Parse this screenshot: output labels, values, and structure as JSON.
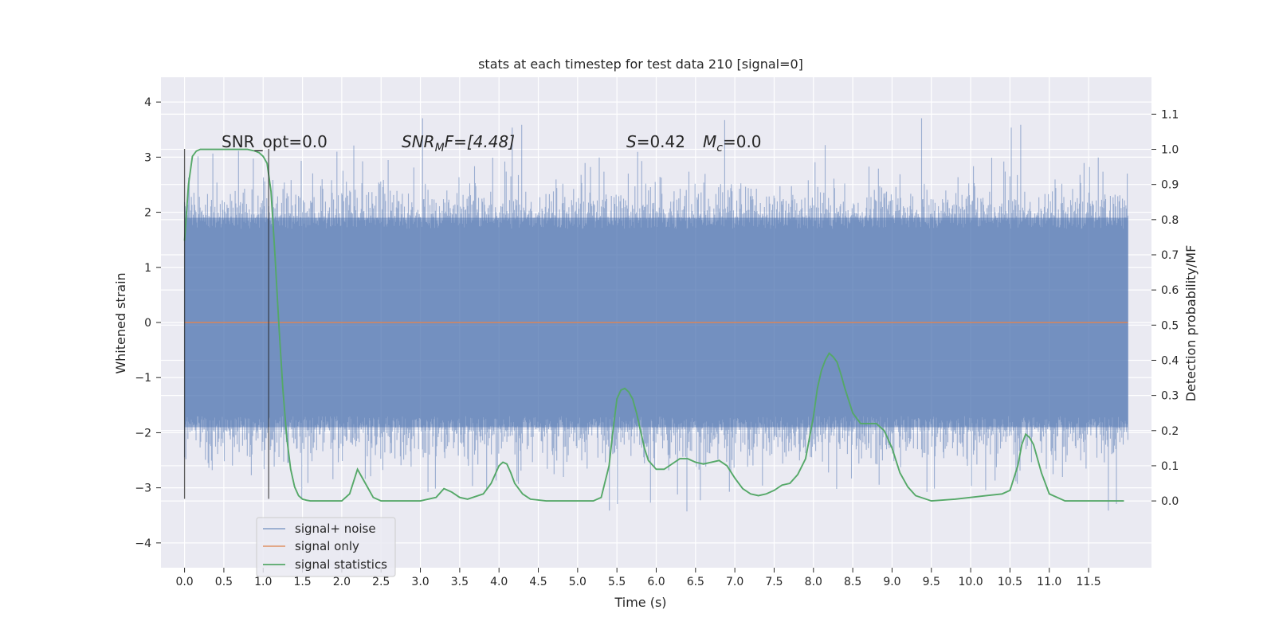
{
  "chart_data": {
    "type": "line",
    "title": "stats at each timestep for test data 210 [signal=0]",
    "xlabel": "Time (s)",
    "ylabel": "Whitened strain",
    "ylabel_right": "Detection probability/MF",
    "xlim": [
      -0.3,
      12.3
    ],
    "ylim": [
      -4.45,
      4.45
    ],
    "ylim_right": [
      -0.19,
      1.205
    ],
    "xticks": [
      "0.0",
      "0.5",
      "1.0",
      "1.5",
      "2.0",
      "2.5",
      "3.0",
      "3.5",
      "4.0",
      "4.5",
      "5.0",
      "5.5",
      "6.0",
      "6.5",
      "7.0",
      "7.5",
      "8.0",
      "8.5",
      "9.0",
      "9.5",
      "10.0",
      "10.5",
      "11.0",
      "11.5"
    ],
    "yticks": [
      "4",
      "3",
      "2",
      "1",
      "0",
      "−1",
      "−2",
      "−3",
      "−4"
    ],
    "yticks_right": [
      "1.1",
      "1.0",
      "0.9",
      "0.8",
      "0.7",
      "0.6",
      "0.5",
      "0.4",
      "0.3",
      "0.2",
      "0.1",
      "0.0"
    ],
    "grid": true,
    "legend_position": "lower-left",
    "colors": {
      "background": "#eaeaf2",
      "grid": "#ffffff",
      "noise": "#4c72b0",
      "signal": "#dd8452",
      "stats": "#55a868",
      "vlines": "#262626"
    },
    "annotations": {
      "snr_opt": "SNR_opt=0.0",
      "snr_mf_sym": "SNR",
      "snr_mf_sub": "M",
      "snr_mf_rest": "F=[4.48]",
      "s_sym": "S",
      "s_rest": "=0.42",
      "mc_sym": "M",
      "mc_sub": "c",
      "mc_rest": "=0.0"
    },
    "vertical_lines_x": [
      0.0,
      1.07
    ],
    "noise_envelope": {
      "x_range": [
        0.0,
        12.0
      ],
      "typical_range": [
        -1.9,
        1.9
      ],
      "max_abs": 4.1
    },
    "series": [
      {
        "name": "signal+ noise",
        "axis": "left",
        "note_values": "dense noise trace approx ±2.5, peaks to ~4"
      },
      {
        "name": "signal only",
        "axis": "left",
        "x": [
          0.0,
          12.0
        ],
        "y": [
          0.0,
          0.0
        ]
      },
      {
        "name": "signal statistics",
        "axis": "right",
        "x": [
          0.0,
          0.05,
          0.1,
          0.15,
          0.2,
          0.3,
          0.5,
          0.7,
          0.8,
          0.9,
          0.95,
          1.0,
          1.05,
          1.1,
          1.15,
          1.2,
          1.25,
          1.3,
          1.35,
          1.4,
          1.45,
          1.5,
          1.55,
          1.6,
          1.7,
          1.8,
          2.0,
          2.1,
          2.2,
          2.3,
          2.4,
          2.5,
          2.7,
          3.0,
          3.2,
          3.3,
          3.4,
          3.5,
          3.6,
          3.8,
          3.9,
          4.0,
          4.05,
          4.1,
          4.15,
          4.2,
          4.3,
          4.4,
          4.6,
          4.8,
          5.0,
          5.2,
          5.3,
          5.4,
          5.45,
          5.5,
          5.55,
          5.6,
          5.65,
          5.7,
          5.75,
          5.8,
          5.85,
          5.9,
          6.0,
          6.1,
          6.2,
          6.3,
          6.4,
          6.5,
          6.6,
          6.7,
          6.8,
          6.9,
          7.0,
          7.1,
          7.2,
          7.3,
          7.4,
          7.5,
          7.6,
          7.7,
          7.8,
          7.9,
          8.0,
          8.05,
          8.1,
          8.15,
          8.2,
          8.25,
          8.3,
          8.35,
          8.4,
          8.5,
          8.6,
          8.7,
          8.8,
          8.9,
          9.0,
          9.1,
          9.2,
          9.3,
          9.5,
          9.8,
          10.0,
          10.2,
          10.4,
          10.5,
          10.6,
          10.65,
          10.7,
          10.75,
          10.8,
          10.9,
          11.0,
          11.2,
          11.5,
          11.8,
          11.95
        ],
        "y": [
          0.74,
          0.9,
          0.98,
          0.995,
          1.0,
          1.0,
          1.0,
          1.0,
          1.0,
          0.995,
          0.99,
          0.98,
          0.96,
          0.88,
          0.7,
          0.5,
          0.32,
          0.18,
          0.09,
          0.04,
          0.015,
          0.005,
          0.002,
          0.0,
          0.0,
          0.0,
          0.0,
          0.02,
          0.09,
          0.05,
          0.01,
          0.0,
          0.0,
          0.0,
          0.01,
          0.035,
          0.025,
          0.01,
          0.005,
          0.02,
          0.05,
          0.1,
          0.11,
          0.105,
          0.08,
          0.05,
          0.02,
          0.005,
          0.0,
          0.0,
          0.0,
          0.0,
          0.01,
          0.1,
          0.2,
          0.29,
          0.315,
          0.32,
          0.31,
          0.29,
          0.25,
          0.2,
          0.15,
          0.115,
          0.09,
          0.09,
          0.105,
          0.12,
          0.12,
          0.11,
          0.105,
          0.11,
          0.115,
          0.1,
          0.065,
          0.035,
          0.02,
          0.015,
          0.02,
          0.03,
          0.045,
          0.05,
          0.075,
          0.12,
          0.24,
          0.32,
          0.37,
          0.4,
          0.42,
          0.41,
          0.395,
          0.36,
          0.32,
          0.25,
          0.22,
          0.22,
          0.22,
          0.2,
          0.15,
          0.08,
          0.04,
          0.015,
          0.0,
          0.005,
          0.01,
          0.015,
          0.02,
          0.03,
          0.1,
          0.16,
          0.19,
          0.18,
          0.16,
          0.08,
          0.02,
          0.0,
          0.0,
          0.0,
          0.0
        ]
      }
    ]
  }
}
